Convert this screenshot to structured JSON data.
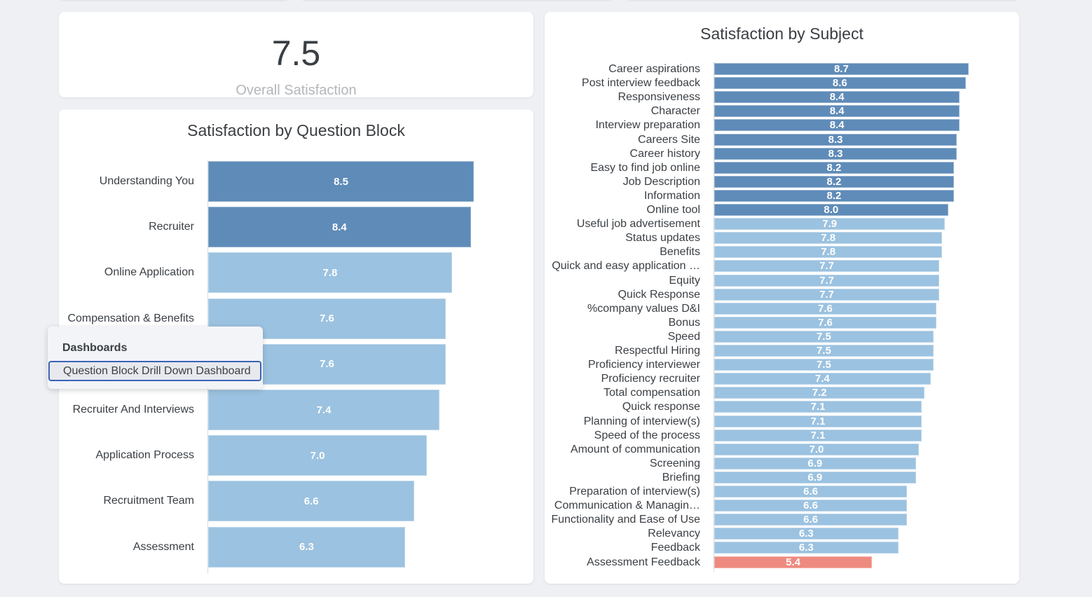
{
  "kpi": {
    "value": "7.5",
    "label": "Overall Satisfaction"
  },
  "context_menu": {
    "heading": "Dashboards",
    "items": [
      {
        "label": "Question Block Drill Down Dashboard",
        "focused": true
      }
    ]
  },
  "colors": {
    "high": "#5f8bb8",
    "mid": "#9bc2e0",
    "low": "#ee8a80",
    "text": "#3a3f44",
    "muted": "#b3b6ba",
    "background": "#eef0f4",
    "focus": "#3a62b8"
  },
  "chart_data": [
    {
      "type": "bar",
      "orientation": "horizontal",
      "title": "Satisfaction by Question Block",
      "xlabel": "",
      "ylabel": "",
      "xlim": [
        0,
        8.5
      ],
      "grid": false,
      "legend": "none",
      "categories": [
        "Understanding You",
        "Recruiter",
        "Online Application",
        "Compensation & Benefits",
        "",
        "Recruiter And Interviews",
        "Application Process",
        "Recruitment Team",
        "Assessment"
      ],
      "values": [
        8.5,
        8.4,
        7.8,
        7.6,
        7.6,
        7.4,
        7.0,
        6.6,
        6.3
      ],
      "data_labels": [
        "8.5",
        "8.4",
        "7.8",
        "7.6",
        "7.6",
        "7.4",
        "7.0",
        "6.6",
        "6.3"
      ],
      "color_bands": [
        "high",
        "high",
        "mid",
        "mid",
        "mid",
        "mid",
        "mid",
        "mid",
        "mid"
      ],
      "notes": "Label of 5th category obscured by context menu"
    },
    {
      "type": "bar",
      "orientation": "horizontal",
      "title": "Satisfaction by Subject",
      "xlabel": "",
      "ylabel": "",
      "xlim": [
        0,
        8.7
      ],
      "grid": false,
      "legend": "none",
      "categories": [
        "Career aspirations",
        "Post interview feedback",
        "Responsiveness",
        "Character",
        "Interview preparation",
        "Careers Site",
        "Career history",
        "Easy to find job online",
        "Job Description",
        "Information",
        "Online tool",
        "Useful job advertisement",
        "Status updates",
        "Benefits",
        "Quick and easy application …",
        "Equity",
        "Quick Response",
        "%company values D&I",
        "Bonus",
        "Speed",
        "Respectful Hiring",
        "Proficiency interviewer",
        "Proficiency recruiter",
        "Total compensation",
        "Quick response",
        "Planning of interview(s)",
        "Speed of the process",
        "Amount of communication",
        "Screening",
        "Briefing",
        "Preparation of interview(s)",
        "Communication & Managin…",
        "Functionality and Ease of Use",
        "Relevancy",
        "Feedback",
        "Assessment Feedback"
      ],
      "values": [
        8.7,
        8.6,
        8.4,
        8.4,
        8.4,
        8.3,
        8.3,
        8.2,
        8.2,
        8.2,
        8.0,
        7.9,
        7.8,
        7.8,
        7.7,
        7.7,
        7.7,
        7.6,
        7.6,
        7.5,
        7.5,
        7.5,
        7.4,
        7.2,
        7.1,
        7.1,
        7.1,
        7.0,
        6.9,
        6.9,
        6.6,
        6.6,
        6.6,
        6.3,
        6.3,
        5.4
      ],
      "data_labels": [
        "8.7",
        "8.6",
        "8.4",
        "8.4",
        "8.4",
        "8.3",
        "8.3",
        "8.2",
        "8.2",
        "8.2",
        "8.0",
        "7.9",
        "7.8",
        "7.8",
        "7.7",
        "7.7",
        "7.7",
        "7.6",
        "7.6",
        "7.5",
        "7.5",
        "7.5",
        "7.4",
        "7.2",
        "7.1",
        "7.1",
        "7.1",
        "7.0",
        "6.9",
        "6.9",
        "6.6",
        "6.6",
        "6.6",
        "6.3",
        "6.3",
        "5.4"
      ],
      "color_bands": [
        "high",
        "high",
        "high",
        "high",
        "high",
        "high",
        "high",
        "high",
        "high",
        "high",
        "high",
        "mid",
        "mid",
        "mid",
        "mid",
        "mid",
        "mid",
        "mid",
        "mid",
        "mid",
        "mid",
        "mid",
        "mid",
        "mid",
        "mid",
        "mid",
        "mid",
        "mid",
        "mid",
        "mid",
        "mid",
        "mid",
        "mid",
        "mid",
        "mid",
        "low"
      ]
    }
  ]
}
